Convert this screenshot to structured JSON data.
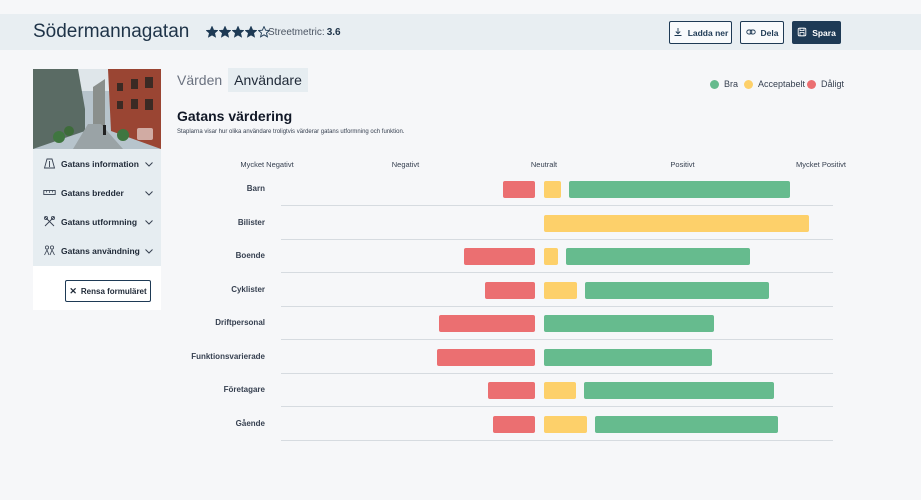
{
  "header": {
    "street_name": "Södermannagatan",
    "rating_stars": 4,
    "rating_max": 5,
    "metric_label": "Streetmetric:",
    "metric_value": "3.6",
    "download_label": "Ladda ner",
    "share_label": "Dela",
    "save_label": "Spara"
  },
  "sidebar": {
    "items": [
      {
        "label": "Gatans information",
        "icon": "road-sign-icon"
      },
      {
        "label": "Gatans bredder",
        "icon": "ruler-icon"
      },
      {
        "label": "Gatans utformning",
        "icon": "tools-icon"
      },
      {
        "label": "Gatans användning",
        "icon": "people-icon"
      }
    ],
    "reset_label": "Rensa formuläret"
  },
  "tabs": [
    {
      "label": "Värden",
      "active": false
    },
    {
      "label": "Användare",
      "active": true
    }
  ],
  "legend": [
    {
      "label": "Bra",
      "color": "#66bb8e"
    },
    {
      "label": "Acceptabelt",
      "color": "#fdd06a"
    },
    {
      "label": "Dåligt",
      "color": "#eb6f71"
    }
  ],
  "section": {
    "title": "Gatans värdering",
    "description": "Staplarna visar hur olika användare troligtvis värderar gatans utformning och funktion."
  },
  "chart_data": {
    "type": "bar",
    "scale_labels": [
      "Mycket Negativt",
      "Negativt",
      "Neutralt",
      "Positivt",
      "Mycket Positivt"
    ],
    "categories": [
      "Barn",
      "Bilister",
      "Boende",
      "Cyklister",
      "Driftpersonal",
      "Funktionsvarierade",
      "Företagare",
      "Gående"
    ],
    "series": [
      {
        "name": "Dåligt",
        "color": "#eb6f71",
        "values": [
          -0.23,
          0,
          -0.51,
          -0.36,
          -0.69,
          -0.71,
          -0.34,
          -0.3
        ]
      },
      {
        "name": "Acceptabelt",
        "color": "#fdd06a",
        "values": [
          0.12,
          1.91,
          0.1,
          0.24,
          0,
          0,
          0.23,
          0.31
        ]
      },
      {
        "name": "Bra",
        "color": "#66bb8e",
        "values": [
          1.6,
          0,
          1.33,
          1.33,
          1.23,
          1.21,
          1.37,
          1.32
        ]
      }
    ]
  }
}
